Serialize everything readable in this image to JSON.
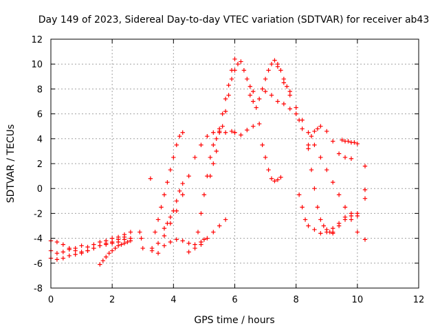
{
  "chart_data": {
    "type": "scatter",
    "title": "Day 149 of 2023, Sidereal Day-to-day VTEC variation (SDTVAR) for receiver ab43",
    "xlabel": "GPS time / hours",
    "ylabel": "SDTVAR / TECUs",
    "xlim": [
      0,
      12
    ],
    "ylim": [
      -8,
      12
    ],
    "xticks": [
      0,
      2,
      4,
      6,
      8,
      10,
      12
    ],
    "yticks": [
      -8,
      -6,
      -4,
      -2,
      0,
      2,
      4,
      6,
      8,
      10,
      12
    ],
    "grid": true,
    "marker": "+",
    "color": "#ff0000",
    "series": [
      {
        "x": [
          0.0,
          0.2,
          0.4,
          0.6,
          0.8,
          1.0,
          1.2,
          1.4,
          1.6,
          1.8,
          2.0,
          2.2,
          2.4,
          2.6
        ],
        "y": [
          -5.0,
          -5.2,
          -5.1,
          -4.9,
          -4.8,
          -4.6,
          -4.7,
          -4.5,
          -4.3,
          -4.2,
          -4.0,
          -3.9,
          -3.7,
          -3.5
        ]
      },
      {
        "x": [
          0.0,
          0.2,
          0.4,
          0.6,
          0.8,
          1.0,
          1.2,
          1.4,
          1.6,
          1.8,
          2.0,
          2.2,
          2.4,
          2.6
        ],
        "y": [
          -5.6,
          -5.7,
          -5.6,
          -5.4,
          -5.3,
          -5.1,
          -5.0,
          -4.8,
          -4.6,
          -4.5,
          -4.4,
          -4.3,
          -4.1,
          -4.0
        ]
      },
      {
        "x": [
          0.0,
          0.2,
          0.4,
          0.6,
          0.8,
          1.0,
          1.2,
          1.4,
          1.6,
          1.8,
          2.0,
          2.2,
          2.4
        ],
        "y": [
          -4.2,
          -4.3,
          -4.5,
          -4.8,
          -5.0,
          -5.2,
          -5.0,
          -4.8,
          -4.6,
          -4.4,
          -4.3,
          -4.1,
          -3.9
        ]
      },
      {
        "x": [
          1.6,
          1.7,
          1.8,
          1.9,
          2.0,
          2.1,
          2.2,
          2.3,
          2.4,
          2.5,
          2.6
        ],
        "y": [
          -6.1,
          -5.8,
          -5.5,
          -5.2,
          -5.0,
          -4.8,
          -4.6,
          -4.5,
          -4.4,
          -4.3,
          -4.2
        ]
      },
      {
        "x": [
          2.9,
          2.95,
          3.0
        ],
        "y": [
          -3.5,
          -4.0,
          -4.8
        ]
      },
      {
        "x": [
          3.3,
          3.4,
          3.5,
          3.6,
          3.7,
          3.8,
          3.9,
          4.0,
          4.1,
          4.2,
          4.3
        ],
        "y": [
          -4.8,
          -3.5,
          -2.5,
          -1.5,
          -0.5,
          0.5,
          1.5,
          2.5,
          3.5,
          4.2,
          4.5
        ]
      },
      {
        "x": [
          3.3,
          3.5,
          3.7,
          3.9,
          4.1,
          4.3,
          4.5,
          4.7,
          4.9,
          5.1,
          5.3,
          5.5,
          5.7,
          5.9,
          6.0
        ],
        "y": [
          -5.0,
          -4.4,
          -3.8,
          -2.8,
          -1.8,
          -0.5,
          1.0,
          2.5,
          3.5,
          4.2,
          4.5,
          4.6,
          4.5,
          4.6,
          4.5
        ]
      },
      {
        "x": [
          3.5,
          3.7,
          3.9,
          4.1,
          4.3,
          4.5,
          4.7,
          4.9,
          5.0
        ],
        "y": [
          -5.2,
          -4.6,
          -4.3,
          -4.1,
          -4.2,
          -4.4,
          -4.5,
          -4.3,
          -4.1
        ]
      },
      {
        "x": [
          3.7,
          3.8,
          3.9,
          4.0,
          4.1,
          4.2,
          4.3
        ],
        "y": [
          -3.2,
          -2.8,
          -2.3,
          -1.8,
          -1.0,
          -0.2,
          0.4
        ]
      },
      {
        "x": [
          4.5,
          4.7,
          4.9,
          5.1,
          5.3,
          5.5,
          5.7
        ],
        "y": [
          -5.1,
          -4.8,
          -4.5,
          -4.0,
          -3.5,
          -3.0,
          -2.5
        ]
      },
      {
        "x": [
          4.8,
          4.9,
          5.0,
          5.1,
          5.2,
          5.3,
          5.4,
          5.5,
          5.6,
          5.7,
          5.8,
          5.9,
          6.0
        ],
        "y": [
          -3.5,
          -2.0,
          -0.5,
          1.0,
          2.5,
          3.5,
          4.0,
          4.8,
          6.0,
          7.2,
          8.3,
          9.5,
          10.4
        ]
      },
      {
        "x": [
          5.2,
          5.3,
          5.4,
          5.5,
          5.6,
          5.7,
          5.8,
          5.9,
          6.0,
          6.1
        ],
        "y": [
          1.0,
          2.0,
          3.0,
          4.5,
          5.0,
          6.2,
          7.5,
          8.8,
          9.5,
          10.0
        ]
      },
      {
        "x": [
          6.0,
          6.2,
          6.4,
          6.6,
          6.8
        ],
        "y": [
          4.5,
          4.3,
          4.7,
          5.0,
          5.2
        ]
      },
      {
        "x": [
          6.2,
          6.3,
          6.4,
          6.5,
          6.6
        ],
        "y": [
          10.2,
          9.5,
          8.8,
          8.2,
          7.8
        ]
      },
      {
        "x": [
          6.5,
          6.6,
          6.7,
          6.8,
          6.9,
          7.0,
          7.1,
          7.2,
          7.3,
          7.4,
          7.5,
          7.6,
          7.7,
          7.8
        ],
        "y": [
          7.5,
          7.0,
          6.5,
          7.2,
          8.0,
          8.8,
          9.5,
          10.0,
          10.3,
          10.0,
          9.5,
          8.8,
          8.2,
          7.8
        ]
      },
      {
        "x": [
          6.9,
          7.0,
          7.1,
          7.2,
          7.3,
          7.4,
          7.5
        ],
        "y": [
          3.5,
          2.5,
          1.5,
          0.8,
          0.6,
          0.7,
          0.9
        ]
      },
      {
        "x": [
          7.0,
          7.2,
          7.4,
          7.6,
          7.8,
          8.0,
          8.1,
          8.2
        ],
        "y": [
          7.8,
          7.5,
          7.0,
          6.8,
          6.4,
          6.0,
          5.5,
          4.8
        ]
      },
      {
        "x": [
          7.4,
          7.6,
          7.8,
          8.0,
          8.2,
          8.4,
          8.6,
          8.8,
          9.0,
          9.2,
          9.4,
          9.6,
          9.8,
          10.0
        ],
        "y": [
          9.8,
          8.5,
          7.5,
          6.5,
          5.5,
          4.5,
          3.5,
          2.5,
          1.5,
          0.5,
          -0.5,
          -1.5,
          -2.5,
          -3.5
        ]
      },
      {
        "x": [
          8.1,
          8.2,
          8.3,
          8.4,
          8.6,
          8.8,
          9.0,
          9.2,
          9.4,
          9.6,
          9.8,
          10.0
        ],
        "y": [
          -0.5,
          -1.5,
          -2.5,
          -3.0,
          -3.3,
          -3.6,
          -3.5,
          -3.2,
          -2.8,
          -2.3,
          -2.0,
          -2.2
        ]
      },
      {
        "x": [
          8.4,
          8.5,
          8.6,
          8.7,
          8.8,
          9.0,
          9.2,
          9.4,
          9.6,
          9.8
        ],
        "y": [
          3.5,
          4.2,
          4.6,
          4.8,
          5.0,
          4.6,
          3.8,
          2.8,
          2.5,
          2.4
        ]
      },
      {
        "x": [
          8.4,
          8.5,
          8.6,
          8.7,
          8.8,
          8.9,
          9.0,
          9.1,
          9.2
        ],
        "y": [
          3.2,
          1.5,
          0.0,
          -1.5,
          -2.5,
          -3.0,
          -3.3,
          -3.5,
          -3.6
        ]
      },
      {
        "x": [
          9.5,
          9.6,
          9.7,
          9.8,
          9.9,
          10.0
        ],
        "y": [
          3.9,
          3.8,
          3.8,
          3.7,
          3.7,
          3.6
        ]
      },
      {
        "x": [
          9.2,
          9.4,
          9.6,
          9.8,
          10.0
        ],
        "y": [
          -3.5,
          -3.0,
          -2.5,
          -2.2,
          -2.0
        ]
      },
      {
        "x": [
          3.25,
          10.25,
          10.25,
          10.25,
          10.25
        ],
        "y": [
          0.8,
          1.8,
          -0.1,
          -0.8,
          -4.1
        ]
      }
    ]
  }
}
